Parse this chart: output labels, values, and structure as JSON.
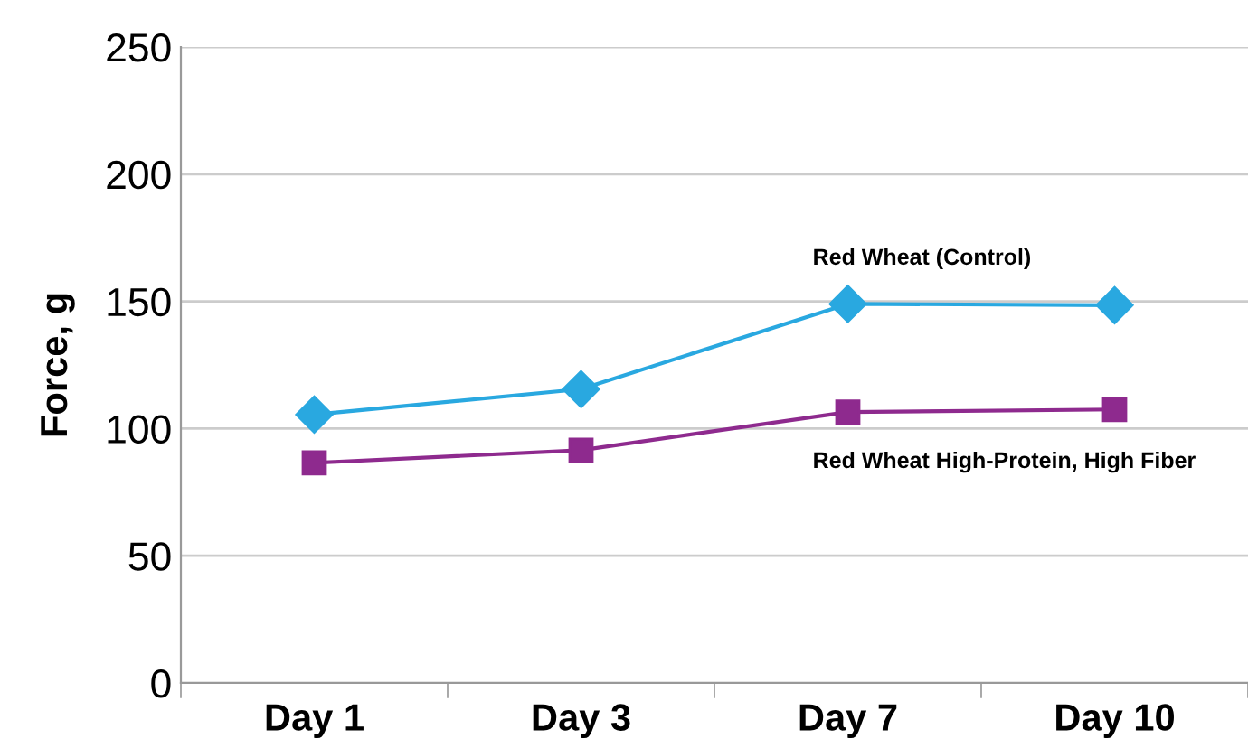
{
  "chart_data": {
    "type": "line",
    "ylabel": "Force, g",
    "categories": [
      "Day 1",
      "Day 3",
      "Day 7",
      "Day 10"
    ],
    "series": [
      {
        "name": "Red Wheat (Control)",
        "color": "#29a8e0",
        "marker": "diamond",
        "values": [
          105.5,
          115.5,
          149,
          148.5
        ]
      },
      {
        "name": "Red Wheat High-Protein, High Fiber",
        "color": "#8e2a8e",
        "marker": "square",
        "values": [
          86.5,
          91.5,
          106.5,
          107.5
        ]
      }
    ],
    "ylim": [
      0,
      250
    ],
    "yticks": [
      0,
      50,
      100,
      150,
      200,
      250
    ],
    "grid": "y",
    "legend": false,
    "line_style": "solid"
  }
}
